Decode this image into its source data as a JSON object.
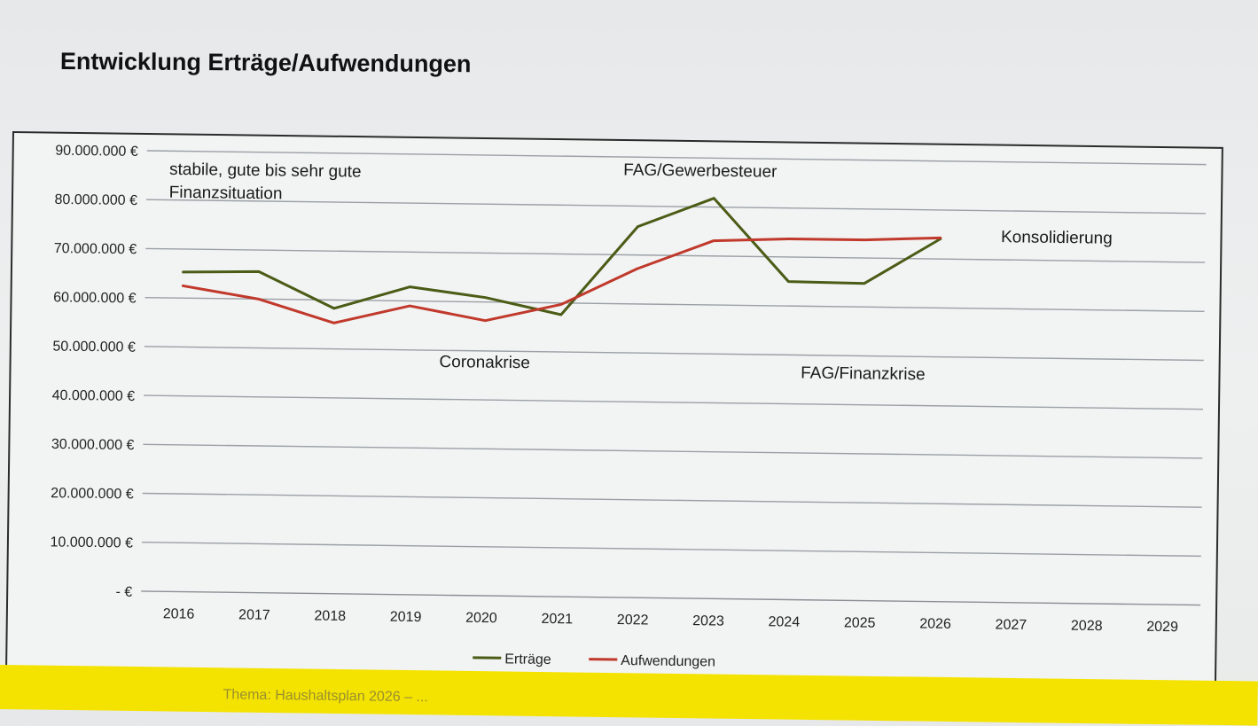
{
  "slide": {
    "title": "Entwicklung Erträge/Aufwendungen",
    "footer_text": "Thema: Haushaltsplan 2026 – ..."
  },
  "colors": {
    "ertraege": "#4a5c16",
    "aufwendungen": "#c0392b",
    "grid": "#9aa0a6",
    "footer": "#f4e300"
  },
  "chart_data": {
    "type": "line",
    "title": "",
    "xlabel": "",
    "ylabel": "",
    "categories": [
      "2016",
      "2017",
      "2018",
      "2019",
      "2020",
      "2021",
      "2022",
      "2023",
      "2024",
      "2025",
      "2026",
      "2027",
      "2028",
      "2029"
    ],
    "ylim": [
      0,
      90000000
    ],
    "y_ticks": [
      0,
      10000000,
      20000000,
      30000000,
      40000000,
      50000000,
      60000000,
      70000000,
      80000000,
      90000000
    ],
    "y_tick_labels": [
      "-   €",
      "10.000.000 €",
      "20.000.000 €",
      "30.000.000 €",
      "40.000.000 €",
      "50.000.000 €",
      "60.000.000 €",
      "70.000.000 €",
      "80.000.000 €",
      "90.000.000 €"
    ],
    "grid": true,
    "legend_position": "bottom",
    "series": [
      {
        "name": "Erträge",
        "color": "#4a5c16",
        "values": [
          65300000,
          65600000,
          58300000,
          62900000,
          60900000,
          57600000,
          75800000,
          81800000,
          65000000,
          64800000,
          74100000,
          null,
          null,
          null
        ]
      },
      {
        "name": "Aufwendungen",
        "color": "#c0392b",
        "values": [
          62500000,
          60000000,
          55300000,
          59000000,
          56200000,
          59700000,
          67200000,
          73100000,
          73700000,
          73700000,
          74300000,
          null,
          null,
          null
        ]
      }
    ],
    "annotations": [
      {
        "text": "stabile, gute bis sehr gute",
        "x": "2016",
        "y": 85200000,
        "anchor": "start"
      },
      {
        "text": "Finanzsituation",
        "x": "2016",
        "y": 80500000,
        "anchor": "start"
      },
      {
        "text": "FAG/Gewerbesteuer",
        "x": "2022",
        "y": 86300000,
        "anchor": "start"
      },
      {
        "text": "Konsolidierung",
        "x": "2027",
        "y": 73600000,
        "anchor": "start"
      },
      {
        "text": "Coronakrise",
        "x": "2020",
        "y": 46600000,
        "anchor": "middle"
      },
      {
        "text": "FAG/Finanzkrise",
        "x": "2025",
        "y": 45300000,
        "anchor": "middle"
      }
    ]
  }
}
